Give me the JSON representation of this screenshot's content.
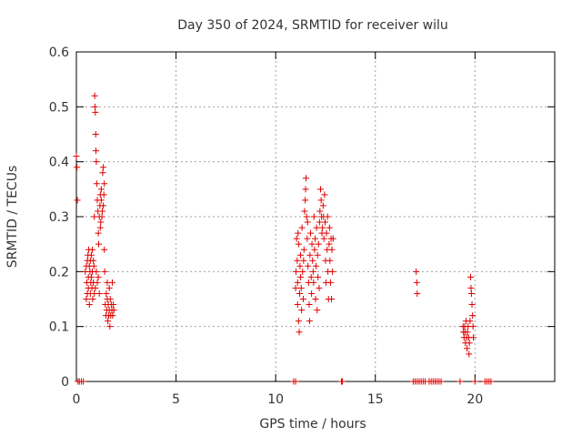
{
  "chart_data": {
    "type": "scatter",
    "title": "Day 350 of 2024, SRMTID for receiver wilu",
    "xlabel": "GPS time / hours",
    "ylabel": "SRMTID / TECUs",
    "xlim": [
      0,
      24
    ],
    "ylim": [
      0,
      0.6
    ],
    "xticks": [
      0,
      5,
      10,
      15,
      20
    ],
    "xtick_labels": [
      "0",
      "5",
      "10",
      "15",
      "20"
    ],
    "yticks": [
      0,
      0.1,
      0.2,
      0.3,
      0.4,
      0.5,
      0.6
    ],
    "ytick_labels": [
      "0",
      "0.1",
      "0.2",
      "0.3",
      "0.4",
      "0.5",
      "0.6"
    ],
    "grid": true,
    "marker": "+",
    "color": "#e00000",
    "series": [
      {
        "name": "SRMTID",
        "points": [
          [
            0.0,
            0.41
          ],
          [
            0.03,
            0.39
          ],
          [
            0.05,
            0.33
          ],
          [
            0.08,
            0.0
          ],
          [
            0.15,
            0.0
          ],
          [
            0.25,
            0.0
          ],
          [
            0.35,
            0.0
          ],
          [
            0.45,
            0.2
          ],
          [
            0.5,
            0.15
          ],
          [
            0.5,
            0.21
          ],
          [
            0.52,
            0.18
          ],
          [
            0.55,
            0.22
          ],
          [
            0.55,
            0.16
          ],
          [
            0.58,
            0.23
          ],
          [
            0.6,
            0.19
          ],
          [
            0.6,
            0.17
          ],
          [
            0.62,
            0.24
          ],
          [
            0.65,
            0.21
          ],
          [
            0.65,
            0.14
          ],
          [
            0.68,
            0.2
          ],
          [
            0.7,
            0.22
          ],
          [
            0.7,
            0.16
          ],
          [
            0.72,
            0.18
          ],
          [
            0.75,
            0.23
          ],
          [
            0.75,
            0.19
          ],
          [
            0.78,
            0.17
          ],
          [
            0.8,
            0.2
          ],
          [
            0.8,
            0.24
          ],
          [
            0.82,
            0.15
          ],
          [
            0.85,
            0.22
          ],
          [
            0.85,
            0.18
          ],
          [
            0.88,
            0.21
          ],
          [
            0.9,
            0.16
          ],
          [
            0.9,
            0.3
          ],
          [
            0.92,
            0.52
          ],
          [
            0.93,
            0.5
          ],
          [
            0.95,
            0.49
          ],
          [
            0.95,
            0.17
          ],
          [
            0.97,
            0.45
          ],
          [
            0.98,
            0.42
          ],
          [
            1.0,
            0.4
          ],
          [
            1.0,
            0.2
          ],
          [
            1.02,
            0.36
          ],
          [
            1.05,
            0.33
          ],
          [
            1.05,
            0.18
          ],
          [
            1.08,
            0.31
          ],
          [
            1.1,
            0.27
          ],
          [
            1.1,
            0.19
          ],
          [
            1.12,
            0.25
          ],
          [
            1.15,
            0.3
          ],
          [
            1.15,
            0.16
          ],
          [
            1.18,
            0.32
          ],
          [
            1.2,
            0.34
          ],
          [
            1.2,
            0.28
          ],
          [
            1.22,
            0.29
          ],
          [
            1.25,
            0.33
          ],
          [
            1.25,
            0.35
          ],
          [
            1.28,
            0.3
          ],
          [
            1.3,
            0.31
          ],
          [
            1.32,
            0.38
          ],
          [
            1.35,
            0.39
          ],
          [
            1.35,
            0.32
          ],
          [
            1.38,
            0.34
          ],
          [
            1.4,
            0.36
          ],
          [
            1.4,
            0.24
          ],
          [
            1.42,
            0.2
          ],
          [
            1.45,
            0.14
          ],
          [
            1.48,
            0.12
          ],
          [
            1.5,
            0.16
          ],
          [
            1.52,
            0.13
          ],
          [
            1.55,
            0.15
          ],
          [
            1.55,
            0.18
          ],
          [
            1.58,
            0.11
          ],
          [
            1.6,
            0.14
          ],
          [
            1.62,
            0.12
          ],
          [
            1.65,
            0.17
          ],
          [
            1.65,
            0.13
          ],
          [
            1.68,
            0.1
          ],
          [
            1.7,
            0.15
          ],
          [
            1.72,
            0.12
          ],
          [
            1.75,
            0.14
          ],
          [
            1.78,
            0.13
          ],
          [
            1.8,
            0.18
          ],
          [
            1.82,
            0.12
          ],
          [
            1.85,
            0.14
          ],
          [
            1.88,
            0.13
          ],
          [
            10.9,
            0.0
          ],
          [
            11.0,
            0.0
          ],
          [
            11.0,
            0.17
          ],
          [
            11.02,
            0.2
          ],
          [
            11.05,
            0.26
          ],
          [
            11.08,
            0.22
          ],
          [
            11.1,
            0.18
          ],
          [
            11.1,
            0.14
          ],
          [
            11.12,
            0.27
          ],
          [
            11.15,
            0.25
          ],
          [
            11.15,
            0.11
          ],
          [
            11.18,
            0.09
          ],
          [
            11.2,
            0.16
          ],
          [
            11.22,
            0.21
          ],
          [
            11.25,
            0.19
          ],
          [
            11.25,
            0.23
          ],
          [
            11.28,
            0.17
          ],
          [
            11.3,
            0.13
          ],
          [
            11.32,
            0.28
          ],
          [
            11.35,
            0.2
          ],
          [
            11.38,
            0.15
          ],
          [
            11.4,
            0.22
          ],
          [
            11.42,
            0.24
          ],
          [
            11.45,
            0.31
          ],
          [
            11.48,
            0.33
          ],
          [
            11.5,
            0.35
          ],
          [
            11.52,
            0.37
          ],
          [
            11.55,
            0.3
          ],
          [
            11.58,
            0.26
          ],
          [
            11.6,
            0.29
          ],
          [
            11.62,
            0.21
          ],
          [
            11.65,
            0.18
          ],
          [
            11.68,
            0.14
          ],
          [
            11.7,
            0.11
          ],
          [
            11.72,
            0.23
          ],
          [
            11.75,
            0.27
          ],
          [
            11.78,
            0.19
          ],
          [
            11.8,
            0.16
          ],
          [
            11.82,
            0.25
          ],
          [
            11.85,
            0.22
          ],
          [
            11.88,
            0.2
          ],
          [
            11.9,
            0.18
          ],
          [
            11.92,
            0.3
          ],
          [
            11.95,
            0.24
          ],
          [
            11.98,
            0.26
          ],
          [
            12.0,
            0.15
          ],
          [
            12.02,
            0.21
          ],
          [
            12.05,
            0.28
          ],
          [
            12.08,
            0.13
          ],
          [
            12.1,
            0.23
          ],
          [
            12.12,
            0.19
          ],
          [
            12.15,
            0.25
          ],
          [
            12.18,
            0.17
          ],
          [
            12.2,
            0.29
          ],
          [
            12.22,
            0.31
          ],
          [
            12.25,
            0.35
          ],
          [
            12.28,
            0.33
          ],
          [
            12.3,
            0.3
          ],
          [
            12.32,
            0.27
          ],
          [
            12.35,
            0.28
          ],
          [
            12.38,
            0.32
          ],
          [
            12.4,
            0.3
          ],
          [
            12.42,
            0.26
          ],
          [
            12.45,
            0.34
          ],
          [
            12.48,
            0.29
          ],
          [
            12.5,
            0.22
          ],
          [
            12.52,
            0.18
          ],
          [
            12.55,
            0.27
          ],
          [
            12.58,
            0.24
          ],
          [
            12.6,
            0.3
          ],
          [
            12.62,
            0.2
          ],
          [
            12.65,
            0.15
          ],
          [
            12.68,
            0.25
          ],
          [
            12.7,
            0.28
          ],
          [
            12.72,
            0.22
          ],
          [
            12.75,
            0.18
          ],
          [
            12.78,
            0.26
          ],
          [
            12.8,
            0.15
          ],
          [
            12.82,
            0.24
          ],
          [
            12.85,
            0.2
          ],
          [
            12.88,
            0.26
          ],
          [
            13.3,
            0.0
          ],
          [
            13.35,
            0.0
          ],
          [
            16.9,
            0.0
          ],
          [
            17.0,
            0.0
          ],
          [
            17.05,
            0.2
          ],
          [
            17.08,
            0.18
          ],
          [
            17.1,
            0.16
          ],
          [
            17.1,
            0.0
          ],
          [
            17.2,
            0.0
          ],
          [
            17.3,
            0.0
          ],
          [
            17.4,
            0.0
          ],
          [
            17.5,
            0.0
          ],
          [
            17.7,
            0.0
          ],
          [
            17.8,
            0.0
          ],
          [
            17.9,
            0.0
          ],
          [
            18.0,
            0.0
          ],
          [
            18.1,
            0.0
          ],
          [
            18.2,
            0.0
          ],
          [
            18.3,
            0.0
          ],
          [
            19.25,
            0.0
          ],
          [
            19.4,
            0.1
          ],
          [
            19.42,
            0.09
          ],
          [
            19.45,
            0.08
          ],
          [
            19.48,
            0.1
          ],
          [
            19.5,
            0.09
          ],
          [
            19.52,
            0.07
          ],
          [
            19.55,
            0.11
          ],
          [
            19.58,
            0.08
          ],
          [
            19.6,
            0.06
          ],
          [
            19.62,
            0.09
          ],
          [
            19.65,
            0.1
          ],
          [
            19.68,
            0.08
          ],
          [
            19.7,
            0.05
          ],
          [
            19.72,
            0.07
          ],
          [
            19.75,
            0.11
          ],
          [
            19.78,
            0.19
          ],
          [
            19.8,
            0.17
          ],
          [
            19.82,
            0.16
          ],
          [
            19.85,
            0.14
          ],
          [
            19.88,
            0.12
          ],
          [
            19.9,
            0.1
          ],
          [
            19.92,
            0.08
          ],
          [
            20.0,
            0.0
          ],
          [
            20.5,
            0.0
          ],
          [
            20.6,
            0.0
          ],
          [
            20.7,
            0.0
          ],
          [
            20.8,
            0.0
          ]
        ]
      }
    ]
  }
}
